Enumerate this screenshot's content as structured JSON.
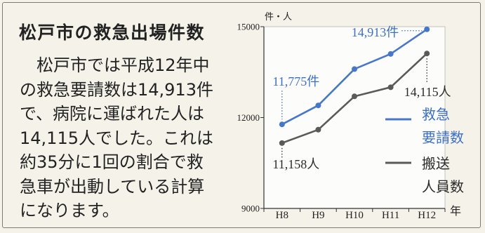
{
  "title": "松戸市の救急出場件数",
  "body_lines": [
    "　松戸市では平成12年中",
    "の救急要請数は14,913件",
    "で、病院に運ばれた人は",
    "14,115人でした。これは",
    "約35分に1回の割合で救",
    "急車が出動している計算",
    "になります。"
  ],
  "colors": {
    "background": "#f5f2e9",
    "text": "#222222"
  },
  "chart_data": {
    "type": "line",
    "categories": [
      "H8",
      "H9",
      "H10",
      "H11",
      "H12"
    ],
    "xlabel": "年",
    "ylabel": "件・人",
    "ylim": [
      9000,
      15000
    ],
    "yticks": [
      15000,
      12000,
      9000
    ],
    "grid": false,
    "legend_position": "right",
    "series": [
      {
        "legend": [
          "救急",
          "要請数"
        ],
        "values": [
          11775,
          12400,
          13600,
          14100,
          14913
        ],
        "color": "#4777c9",
        "label_color": "#3d6fc4"
      },
      {
        "legend": [
          "搬送",
          "人員数"
        ],
        "values": [
          11158,
          11600,
          12700,
          13000,
          14115
        ],
        "color": "#5a5a5a",
        "label_color": "#2b2b2b"
      }
    ],
    "data_labels": [
      {
        "series": 0,
        "index": 0,
        "text": "11,775件"
      },
      {
        "series": 0,
        "index": 4,
        "text": "14,913件"
      },
      {
        "series": 1,
        "index": 4,
        "text": "14,115人"
      },
      {
        "series": 1,
        "index": 0,
        "text": "11,158人"
      }
    ]
  }
}
